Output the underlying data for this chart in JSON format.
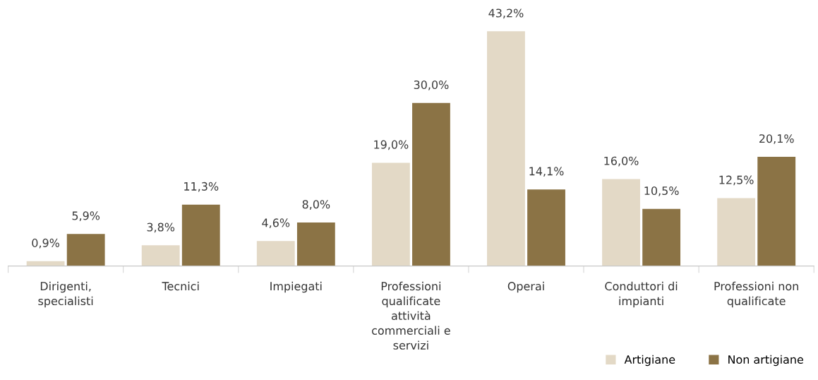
{
  "chart_data": {
    "type": "bar",
    "categories": [
      "Dirigenti,\nspecialisti",
      "Tecnici",
      "Impiegati",
      "Professioni\nqualificate\nattività\ncommerciali e\nservizi",
      "Operai",
      "Conduttori di\nimpianti",
      "Professioni non\nqualificate"
    ],
    "series": [
      {
        "name": "Artigiane",
        "color": "#e3d9c6",
        "values": [
          0.9,
          3.8,
          4.6,
          19.0,
          43.2,
          16.0,
          12.5
        ],
        "value_labels": [
          "0,9%",
          "3,8%",
          "4,6%",
          "19,0%",
          "43,2%",
          "16,0%",
          "12,5%"
        ]
      },
      {
        "name": "Non artigiane",
        "color": "#8b7345",
        "values": [
          5.9,
          11.3,
          8.0,
          30.0,
          14.1,
          10.5,
          20.1
        ],
        "value_labels": [
          "5,9%",
          "11,3%",
          "8,0%",
          "30,0%",
          "14,1%",
          "10,5%",
          "20,1%"
        ]
      }
    ],
    "tick_labels": "x",
    "legend": "bottom right",
    "grid": false
  }
}
